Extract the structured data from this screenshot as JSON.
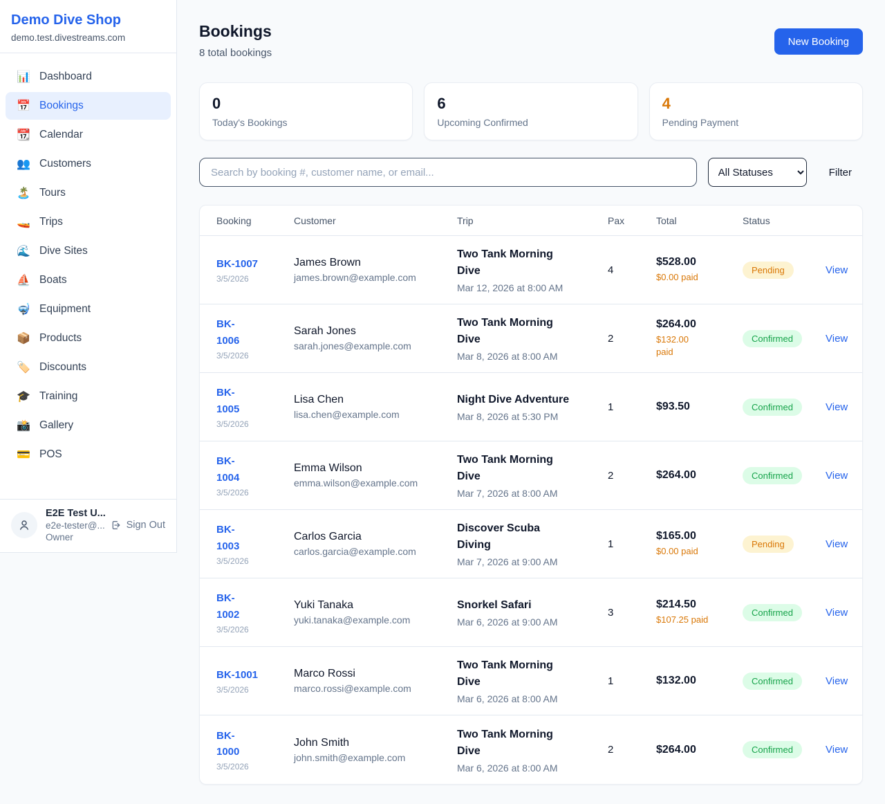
{
  "sidebar": {
    "shop_name": "Demo Dive Shop",
    "domain": "demo.test.divestreams.com",
    "nav": [
      {
        "slug": "dashboard",
        "icon_name": "bar-chart-icon",
        "glyph": "📊",
        "label": "Dashboard",
        "active": false
      },
      {
        "slug": "bookings",
        "icon_name": "calendar-icon",
        "glyph": "📅",
        "label": "Bookings",
        "active": true
      },
      {
        "slug": "calendar",
        "icon_name": "tear-calendar-icon",
        "glyph": "📆",
        "label": "Calendar",
        "active": false
      },
      {
        "slug": "customers",
        "icon_name": "people-icon",
        "glyph": "👥",
        "label": "Customers",
        "active": false
      },
      {
        "slug": "tours",
        "icon_name": "island-icon",
        "glyph": "🏝️",
        "label": "Tours",
        "active": false
      },
      {
        "slug": "trips",
        "icon_name": "speedboat-icon",
        "glyph": "🚤",
        "label": "Trips",
        "active": false
      },
      {
        "slug": "dive-sites",
        "icon_name": "wave-icon",
        "glyph": "🌊",
        "label": "Dive Sites",
        "active": false
      },
      {
        "slug": "boats",
        "icon_name": "sailboat-icon",
        "glyph": "⛵",
        "label": "Boats",
        "active": false
      },
      {
        "slug": "equipment",
        "icon_name": "diving-mask-icon",
        "glyph": "🤿",
        "label": "Equipment",
        "active": false
      },
      {
        "slug": "products",
        "icon_name": "package-icon",
        "glyph": "📦",
        "label": "Products",
        "active": false
      },
      {
        "slug": "discounts",
        "icon_name": "tag-icon",
        "glyph": "🏷️",
        "label": "Discounts",
        "active": false
      },
      {
        "slug": "training",
        "icon_name": "graduation-cap-icon",
        "glyph": "🎓",
        "label": "Training",
        "active": false
      },
      {
        "slug": "gallery",
        "icon_name": "camera-icon",
        "glyph": "📸",
        "label": "Gallery",
        "active": false
      },
      {
        "slug": "pos",
        "icon_name": "credit-card-icon",
        "glyph": "💳",
        "label": "POS",
        "active": false
      }
    ],
    "user": {
      "name": "E2E Test U...",
      "email": "e2e-tester@...",
      "role": "Owner",
      "sign_out_label": "Sign Out"
    }
  },
  "header": {
    "title": "Bookings",
    "subtitle": "8 total bookings",
    "new_booking_label": "New Booking"
  },
  "stats": [
    {
      "value": "0",
      "label": "Today's Bookings",
      "color": "#0f172a"
    },
    {
      "value": "6",
      "label": "Upcoming Confirmed",
      "color": "#0f172a"
    },
    {
      "value": "4",
      "label": "Pending Payment",
      "color": "#d97706"
    }
  ],
  "filters": {
    "search_placeholder": "Search by booking #, customer name, or email...",
    "status_selected": "All Statuses",
    "filter_label": "Filter"
  },
  "table": {
    "columns": [
      "Booking",
      "Customer",
      "Trip",
      "Pax",
      "Total",
      "Status"
    ],
    "view_label": "View",
    "status_styles": {
      "Pending": {
        "bg": "#fdf3d1",
        "text": "#d97706"
      },
      "Confirmed": {
        "bg": "#dcfce7",
        "text": "#16a34a"
      }
    },
    "rows": [
      {
        "booking": "BK-1007",
        "date": "3/5/2026",
        "customer": "James Brown",
        "email": "james.brown@example.com",
        "trip": "Two Tank Morning Dive",
        "trip_time": "Mar 12, 2026 at 8:00 AM",
        "pax": "4",
        "total": "$528.00",
        "paid": "$0.00 paid",
        "status": "Pending"
      },
      {
        "booking": "BK-\n1006",
        "date": "3/5/2026",
        "customer": "Sarah Jones",
        "email": "sarah.jones@example.com",
        "trip": "Two Tank Morning Dive",
        "trip_time": "Mar 8, 2026 at 8:00 AM",
        "pax": "2",
        "total": "$264.00",
        "paid": "$132.00\npaid",
        "status": "Confirmed"
      },
      {
        "booking": "BK-\n1005",
        "date": "3/5/2026",
        "customer": "Lisa Chen",
        "email": "lisa.chen@example.com",
        "trip": "Night Dive Adventure",
        "trip_time": "Mar 8, 2026 at 5:30 PM",
        "pax": "1",
        "total": "$93.50",
        "paid": "",
        "status": "Confirmed"
      },
      {
        "booking": "BK-\n1004",
        "date": "3/5/2026",
        "customer": "Emma Wilson",
        "email": "emma.wilson@example.com",
        "trip": "Two Tank Morning Dive",
        "trip_time": "Mar 7, 2026 at 8:00 AM",
        "pax": "2",
        "total": "$264.00",
        "paid": "",
        "status": "Confirmed"
      },
      {
        "booking": "BK-\n1003",
        "date": "3/5/2026",
        "customer": "Carlos Garcia",
        "email": "carlos.garcia@example.com",
        "trip": "Discover Scuba Diving",
        "trip_time": "Mar 7, 2026 at 9:00 AM",
        "pax": "1",
        "total": "$165.00",
        "paid": "$0.00 paid",
        "status": "Pending"
      },
      {
        "booking": "BK-\n1002",
        "date": "3/5/2026",
        "customer": "Yuki Tanaka",
        "email": "yuki.tanaka@example.com",
        "trip": "Snorkel Safari",
        "trip_time": "Mar 6, 2026 at 9:00 AM",
        "pax": "3",
        "total": "$214.50",
        "paid": "$107.25 paid",
        "status": "Confirmed"
      },
      {
        "booking": "BK-1001",
        "date": "3/5/2026",
        "customer": "Marco Rossi",
        "email": "marco.rossi@example.com",
        "trip": "Two Tank Morning Dive",
        "trip_time": "Mar 6, 2026 at 8:00 AM",
        "pax": "1",
        "total": "$132.00",
        "paid": "",
        "status": "Confirmed"
      },
      {
        "booking": "BK-\n1000",
        "date": "3/5/2026",
        "customer": "John Smith",
        "email": "john.smith@example.com",
        "trip": "Two Tank Morning Dive",
        "trip_time": "Mar 6, 2026 at 8:00 AM",
        "pax": "2",
        "total": "$264.00",
        "paid": "",
        "status": "Confirmed"
      }
    ]
  },
  "colors": {
    "brand_blue": "#2563eb",
    "orange": "#d97706",
    "green": "#16a34a",
    "page_bg": "#f8fafc",
    "border": "#e2e8f0",
    "muted_text": "#64748b"
  }
}
